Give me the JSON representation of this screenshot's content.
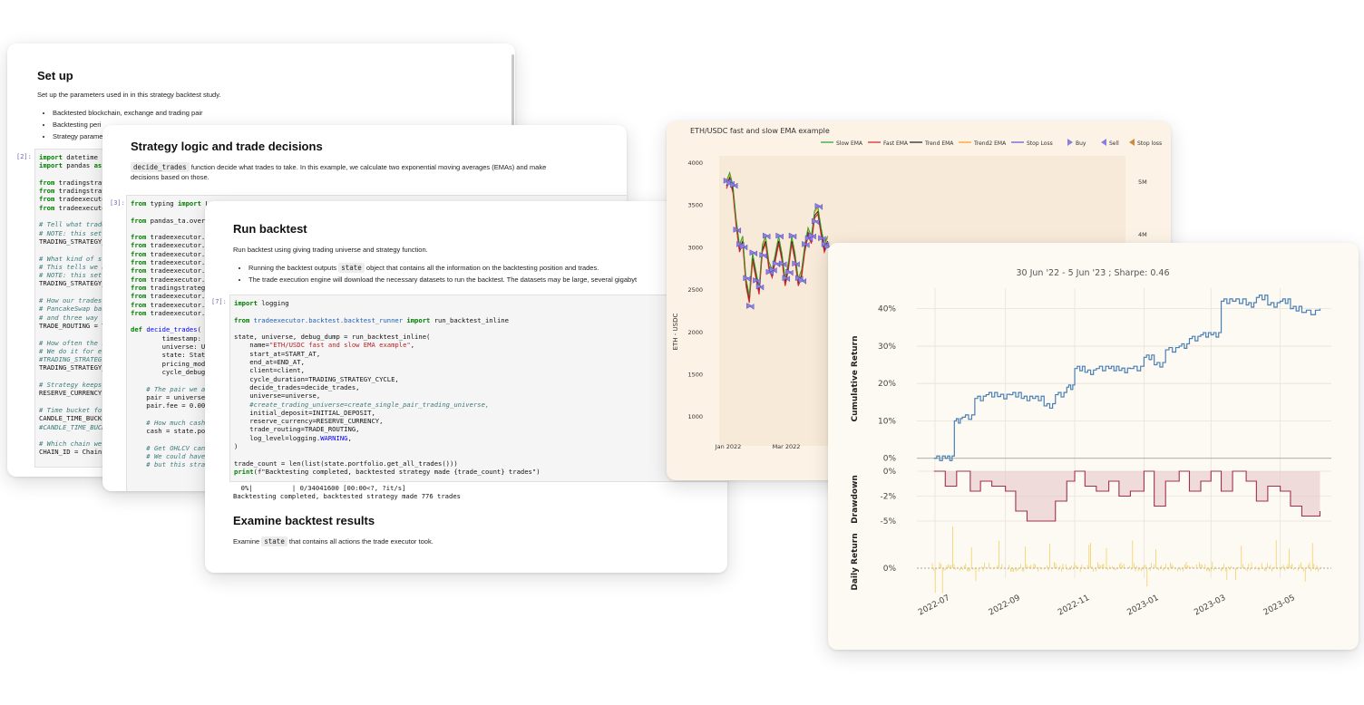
{
  "card1": {
    "title": "Set up",
    "desc": "Set up the parameters used in in this strategy backtest study.",
    "bullets": [
      "Backtested blockchain, exchange and trading pair",
      "Backtesting peri",
      "Strategy parame"
    ],
    "prompt": "[2]:",
    "code_lines": [
      "import datetime",
      "import pandas as p",
      "",
      "from tradingstrate",
      "from tradingstrate",
      "from tradeexecutor",
      "from tradeexecutor",
      "",
      "# Tell what trade ",
      "# NOTE: this setti",
      "TRADING_STRATEGY_T",
      "",
      "# What kind of str",
      "# This tells we ar",
      "# NOTE: this setti",
      "TRADING_STRATEGY_T",
      "",
      "# How our trades a",
      "# PancakeSwap basi",
      "# and three way tr",
      "TRADE_ROUTING = Tr",
      "",
      "# How often the st",
      "# We do it for eve",
      "#TRADING_STRATEGY_",
      "TRADING_STRATEGY_C",
      "",
      "# Strategy keeps i",
      "RESERVE_CURRENCY =",
      "",
      "# Time bucket for ",
      "CANDLE_TIME_BUCKET",
      "#CANDLE_TIME_BUCKE",
      "",
      "# Which chain we a",
      "CHAIN_ID = ChainId"
    ]
  },
  "card2": {
    "title": "Strategy logic and trade decisions",
    "inline_code": "decide_trades",
    "desc_rest": " function decide what trades to take. In this example, we calculate two exponential moving averages (EMAs) and make",
    "desc_line2": "decisions based on those.",
    "prompt": "[3]:",
    "code_lines": [
      "from typing import L",
      "",
      "from pandas_ta.over",
      "",
      "from tradeexecutor.",
      "from tradeexecutor.",
      "from tradeexecutor.",
      "from tradeexecutor.",
      "from tradeexecutor.",
      "from tradeexecutor.",
      "from tradingstrateg",
      "from tradeexecutor.",
      "from tradeexecutor.",
      "from tradeexecutor.",
      "",
      "def decide_trades(",
      "        timestamp:",
      "        universe: U",
      "        state: Stat",
      "        pricing_mod",
      "        cycle_debug",
      "",
      "    # The pair we a",
      "    pair = universe",
      "    pair.fee = 0.00",
      "",
      "    # How much cash",
      "    cash = state.po",
      "",
      "    # Get OHLCV can",
      "    # We could have",
      "    # but this stra"
    ]
  },
  "card3": {
    "title": "Run backtest",
    "desc": "Run backtest using giving trading universe and strategy function.",
    "bullet1_a": "Running the backtest outputs ",
    "bullet1_code": "state",
    "bullet1_b": " object that contains all the information on the backtesting position and trades.",
    "bullet2": "The trade execution engine will download the necessary datasets to run the backtest. The datasets may be large, several gigabyt",
    "prompt": "[7]:",
    "code": {
      "l1_kw": "import",
      "l1_rest": " logging",
      "l3_from": "from",
      "l3_mod": " tradeexecutor.backtest.backtest_runner ",
      "l3_imp": "import",
      "l3_rest": " run_backtest_inline",
      "l5": "state, universe, debug_dump = run_backtest_inline(",
      "l6_a": "    name=",
      "l6_str": "\"ETH/USDC fast and slow EMA example\"",
      "l6_b": ",",
      "l7": "    start_at=START_AT,",
      "l8": "    end_at=END_AT,",
      "l9": "    client=client,",
      "l10": "    cycle_duration=TRADING_STRATEGY_CYCLE,",
      "l11": "    decide_trades=decide_trades,",
      "l12": "    universe=universe,",
      "l13": "    #create_trading_universe=create_single_pair_trading_universe,",
      "l14": "    initial_deposit=INITIAL_DEPOSIT,",
      "l15": "    reserve_currency=RESERVE_CURRENCY,",
      "l16": "    trade_routing=TRADE_ROUTING,",
      "l17_a": "    log_level=logging.",
      "l17_b": "WARNING",
      "l17_c": ",",
      "l18": ")",
      "l20": "trade_count = len(list(state.portfolio.get_all_trades()))",
      "l21_a": "print",
      "l21_b": "(f\"Backtesting completed, backtested strategy made {trade_count} trades\")"
    },
    "output_line1": "  0%|          | 0/34041600 [00:00<?, ?it/s]",
    "output_line2": "Backtesting completed, backtested strategy made 776 trades",
    "section2_title": "Examine backtest results",
    "section2_a": "Examine ",
    "section2_code": "state",
    "section2_b": " that contains all actions the trade executor took."
  },
  "price_chart": {
    "title": "ETH/USDC fast and slow EMA example",
    "legend": [
      "Slow EMA",
      "Fast EMA",
      "Trend EMA",
      "Trend2 EMA",
      "Stop Loss",
      "Buy",
      "Sell",
      "Stop loss"
    ],
    "legend_colors": [
      "#2ca02c",
      "#d62728",
      "#222222",
      "#ff9f1c",
      "#5b5bd6",
      "#8b7fe0",
      "#8b7fe0",
      "#d08a3c"
    ],
    "ylabel": "ETH - USDC",
    "yticks": [
      "4000",
      "3500",
      "3000",
      "2500",
      "2000",
      "1500",
      "1000"
    ],
    "xticks": [
      "Jan 2022",
      "Mar 2022"
    ],
    "volume_ticks": [
      "5M",
      "4M"
    ]
  },
  "chart_data": {
    "type": "line",
    "title": "30 Jun '22 -  5 Jun '23 ;  Sharpe: 0.46",
    "x_ticks": [
      "2022-07",
      "2022-09",
      "2022-11",
      "2023-01",
      "2023-03",
      "2023-05"
    ],
    "panels": [
      {
        "name": "Cumulative Return",
        "ylabel": "Cumulative Return",
        "yticks": [
          "0%",
          "10%",
          "20%",
          "30%",
          "40%"
        ],
        "ylim": [
          -0.02,
          0.45
        ],
        "color": "#4a7fb5",
        "x": [
          "2022-06-30",
          "2022-07-10",
          "2022-07-18",
          "2022-07-25",
          "2022-08-05",
          "2022-08-15",
          "2022-08-25",
          "2022-09-05",
          "2022-09-15",
          "2022-09-25",
          "2022-10-05",
          "2022-10-15",
          "2022-10-25",
          "2022-11-01",
          "2022-11-10",
          "2022-11-20",
          "2022-12-01",
          "2022-12-10",
          "2022-12-20",
          "2023-01-01",
          "2023-01-10",
          "2023-01-20",
          "2023-02-01",
          "2023-02-10",
          "2023-02-20",
          "2023-03-01",
          "2023-03-10",
          "2023-03-20",
          "2023-04-01",
          "2023-04-10",
          "2023-04-20",
          "2023-05-01",
          "2023-05-10",
          "2023-05-20",
          "2023-06-05"
        ],
        "y": [
          0.0,
          0.0,
          0.1,
          0.11,
          0.16,
          0.17,
          0.165,
          0.17,
          0.16,
          0.16,
          0.14,
          0.17,
          0.19,
          0.24,
          0.23,
          0.24,
          0.24,
          0.235,
          0.24,
          0.27,
          0.25,
          0.29,
          0.3,
          0.32,
          0.33,
          0.33,
          0.42,
          0.42,
          0.41,
          0.43,
          0.41,
          0.42,
          0.4,
          0.39,
          0.4
        ]
      },
      {
        "name": "Drawdown",
        "ylabel": "Drawdown",
        "yticks": [
          "0%",
          "-2%",
          "-5%"
        ],
        "ylim": [
          -0.06,
          0.0
        ],
        "color": "#a03050",
        "x": [
          "2022-06-30",
          "2022-07-10",
          "2022-07-20",
          "2022-08-01",
          "2022-08-10",
          "2022-08-20",
          "2022-09-01",
          "2022-09-10",
          "2022-09-20",
          "2022-10-01",
          "2022-10-15",
          "2022-10-25",
          "2022-11-01",
          "2022-11-10",
          "2022-11-20",
          "2022-12-01",
          "2022-12-10",
          "2022-12-20",
          "2023-01-01",
          "2023-01-10",
          "2023-01-20",
          "2023-02-01",
          "2023-02-10",
          "2023-02-20",
          "2023-03-01",
          "2023-03-10",
          "2023-03-20",
          "2023-04-01",
          "2023-04-10",
          "2023-04-20",
          "2023-05-01",
          "2023-05-10",
          "2023-05-20",
          "2023-06-05"
        ],
        "y": [
          0.0,
          -0.015,
          0.0,
          -0.02,
          -0.01,
          -0.015,
          -0.02,
          -0.04,
          -0.05,
          -0.05,
          -0.03,
          -0.01,
          0.0,
          -0.015,
          -0.02,
          -0.01,
          -0.025,
          -0.02,
          0.0,
          -0.035,
          -0.01,
          0.0,
          -0.02,
          -0.01,
          0.0,
          -0.02,
          0.0,
          -0.01,
          -0.03,
          -0.015,
          -0.02,
          -0.035,
          -0.045,
          -0.04
        ]
      },
      {
        "name": "Daily Return",
        "ylabel": "Daily Return",
        "yticks": [
          "0%"
        ],
        "color": "#f2c94c"
      }
    ]
  }
}
